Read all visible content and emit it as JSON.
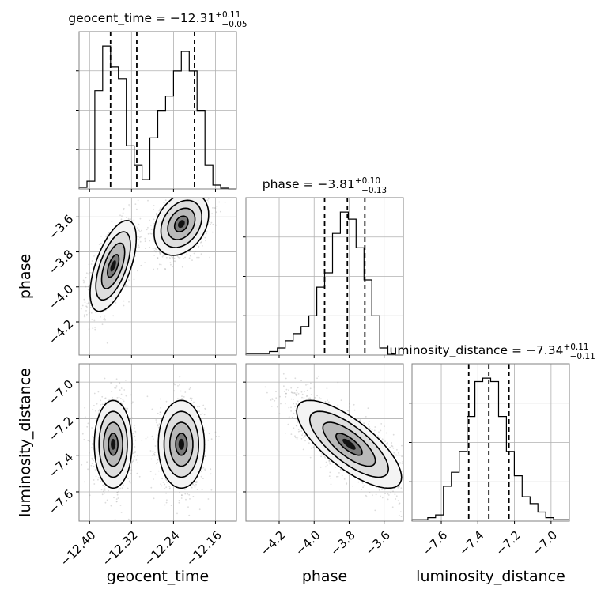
{
  "chart_data": {
    "type": "corner",
    "parameters": [
      "geocent_time",
      "phase",
      "luminosity_distance"
    ],
    "titles": [
      {
        "name": "geocent_time",
        "median": "−12.31",
        "upper": "+0.11",
        "lower": "−0.05"
      },
      {
        "name": "phase",
        "median": "−3.81",
        "upper": "+0.10",
        "lower": "−0.13"
      },
      {
        "name": "luminosity_distance",
        "median": "−7.34",
        "upper": "+0.11",
        "lower": "−0.11"
      }
    ],
    "ranges": {
      "geocent_time": [
        -12.42,
        -12.12
      ],
      "phase": [
        -4.39,
        -3.49
      ],
      "luminosity_distance": [
        -7.76,
        -6.9
      ]
    },
    "ticks": {
      "geocent_time": [
        -12.4,
        -12.32,
        -12.24,
        -12.16
      ],
      "phase": [
        -4.2,
        -4.0,
        -3.8,
        -3.6
      ],
      "luminosity_distance": [
        -7.6,
        -7.4,
        -7.2,
        -7.0
      ]
    },
    "tick_labels": {
      "geocent_time": [
        "−12.40",
        "−12.32",
        "−12.24",
        "−12.16"
      ],
      "phase": [
        "−4.2",
        "−4.0",
        "−3.8",
        "−3.6"
      ],
      "luminosity_distance": [
        "−7.6",
        "−7.4",
        "−7.2",
        "−7.0"
      ]
    },
    "quantiles": {
      "geocent_time": [
        -12.36,
        -12.31,
        -12.2
      ],
      "phase": [
        -3.94,
        -3.81,
        -3.71
      ],
      "luminosity_distance": [
        -7.45,
        -7.34,
        -7.23
      ]
    },
    "histograms": {
      "geocent_time": {
        "edges_start": -12.42,
        "bin_width": 0.015,
        "counts": [
          2,
          10,
          125,
          182,
          155,
          140,
          55,
          30,
          12,
          65,
          100,
          118,
          150,
          175,
          150,
          100,
          30,
          5,
          1,
          0
        ]
      },
      "phase": {
        "edges_start": -4.39,
        "bin_width": 0.045,
        "counts": [
          2,
          2,
          2,
          5,
          10,
          20,
          30,
          40,
          55,
          95,
          115,
          170,
          200,
          190,
          150,
          105,
          55,
          10,
          1,
          0
        ]
      },
      "luminosity_distance": {
        "edges_start": -7.76,
        "bin_width": 0.043,
        "counts": [
          2,
          2,
          5,
          9,
          50,
          70,
          100,
          150,
          200,
          205,
          200,
          150,
          100,
          65,
          35,
          25,
          13,
          5,
          2,
          2
        ]
      }
    },
    "modes": {
      "geocent_time_vs_phase": [
        {
          "center": [
            -12.355,
            -3.88
          ],
          "sigma": [
            0.022,
            0.13
          ],
          "corr": 0.6,
          "weight": 0.5
        },
        {
          "center": [
            -12.225,
            -3.64
          ],
          "sigma": [
            0.026,
            0.09
          ],
          "corr": 0.3,
          "weight": 0.5
        }
      ],
      "geocent_time_vs_luminosity_distance": [
        {
          "center": [
            -12.355,
            -7.34
          ],
          "sigma": [
            0.018,
            0.12
          ],
          "corr": 0.0,
          "weight": 0.5
        },
        {
          "center": [
            -12.225,
            -7.34
          ],
          "sigma": [
            0.022,
            0.12
          ],
          "corr": 0.0,
          "weight": 0.5
        }
      ],
      "phase_vs_luminosity_distance": [
        {
          "center": [
            -3.8,
            -7.34
          ],
          "sigma": [
            0.15,
            0.12
          ],
          "corr": -0.75,
          "weight": 1.0
        }
      ]
    },
    "contour_levels_sigma": [
      0.5,
      1.0,
      1.5,
      2.0
    ],
    "grid": true
  }
}
